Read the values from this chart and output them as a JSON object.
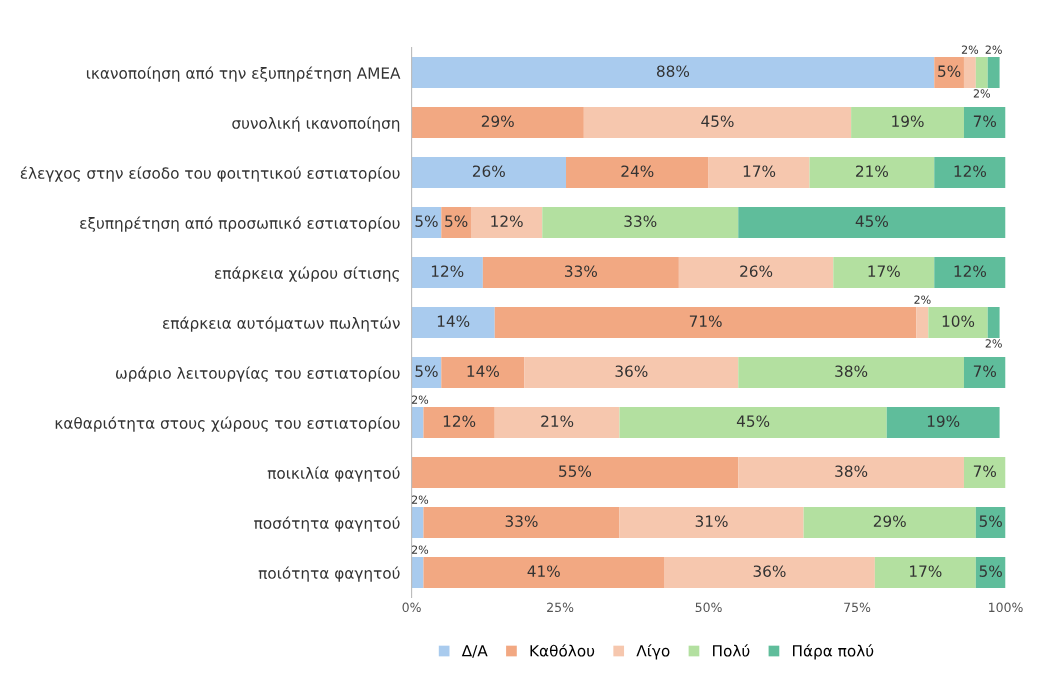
{
  "chart_data": {
    "type": "bar",
    "orientation": "horizontal",
    "stacked": true,
    "legend": "bottom",
    "grid": false,
    "categories": [
      "ικανοποίηση από την εξυπηρέτηση ΑΜΕΑ",
      "συνολική ικανοποίηση",
      "έλεγχος στην είσοδο του φοιτητικού εστιατορίου",
      "εξυπηρέτηση από προσωπικό εστιατορίου",
      "επάρκεια χώρου σίτισης",
      "επάρκεια αυτόματων πωλητών",
      "ωράριο λειτουργίας του εστιατορίου",
      "καθαριότητα στους χώρους του εστιατορίου",
      "ποικιλία φαγητού",
      "ποσότητα φαγητού",
      "ποιότητα φαγητού"
    ],
    "series": [
      {
        "name": "Δ/Α",
        "color": "#a9cbee",
        "values": [
          88,
          null,
          26,
          5,
          12,
          14,
          5,
          2,
          null,
          2,
          2
        ],
        "value_labels": [
          "88%",
          null,
          "26%",
          "5%",
          "12%",
          "14%",
          "5%",
          "2%",
          null,
          "2%",
          "2%"
        ]
      },
      {
        "name": "Καθόλου",
        "color": "#f2a882",
        "values": [
          5,
          29,
          24,
          5,
          33,
          71,
          14,
          12,
          55,
          33,
          40.5
        ],
        "value_labels": [
          "5%",
          "29%",
          "24%",
          "5%",
          "33%",
          "71%",
          "14%",
          "12%",
          "55%",
          "33%",
          "41%"
        ]
      },
      {
        "name": "Λίγο",
        "color": "#f6c7ae",
        "values": [
          2,
          45,
          17,
          12,
          26,
          2,
          36,
          21,
          38,
          31,
          35.5
        ],
        "value_labels": [
          "2%",
          "45%",
          "17%",
          "12%",
          "26%",
          "2%",
          "36%",
          "21%",
          "38%",
          "31%",
          "36%"
        ]
      },
      {
        "name": "Πολύ",
        "color": "#b3e0a0",
        "values": [
          2,
          19,
          21,
          33,
          17,
          10,
          38,
          45,
          7,
          29,
          17
        ],
        "value_labels": [
          "2%",
          "19%",
          "21%",
          "33%",
          "17%",
          "10%",
          "38%",
          "45%",
          "7%",
          "29%",
          "17%"
        ]
      },
      {
        "name": "Πάρα πολύ",
        "color": "#5fbd9b",
        "values": [
          2,
          7,
          12,
          45,
          12,
          2,
          7,
          19,
          null,
          5,
          5
        ],
        "value_labels": [
          "2%",
          "7%",
          "12%",
          "45%",
          "12%",
          "2%",
          "7%",
          "19%",
          null,
          "5%",
          "5%"
        ]
      }
    ],
    "xlim": [
      0,
      100
    ],
    "xticks": [
      {
        "value": 0,
        "label": "0%"
      },
      {
        "value": 25,
        "label": "25%"
      },
      {
        "value": 50,
        "label": "50%"
      },
      {
        "value": 75,
        "label": "75%"
      },
      {
        "value": 100,
        "label": "100%"
      }
    ]
  }
}
